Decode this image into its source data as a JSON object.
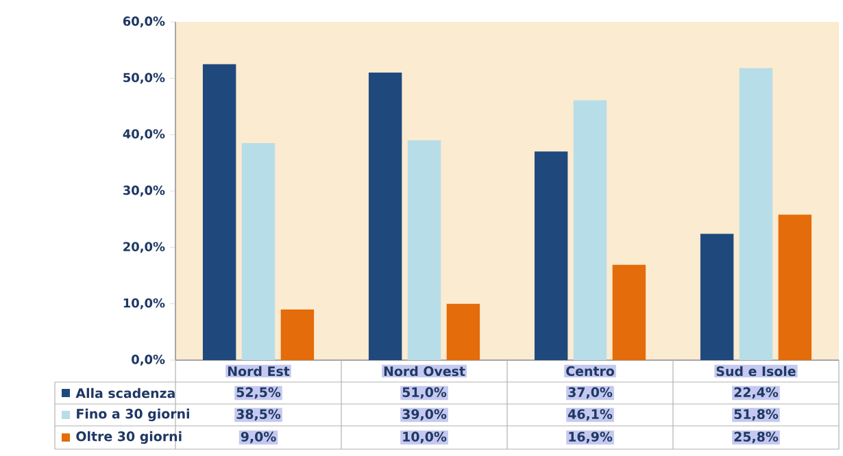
{
  "chart_data": {
    "type": "bar",
    "categories": [
      "Nord Est",
      "Nord Ovest",
      "Centro",
      "Sud e Isole"
    ],
    "series": [
      {
        "name": "Alla scadenza",
        "color": "#1f497d",
        "values": [
          52.5,
          51.0,
          37.0,
          22.4
        ],
        "value_labels": [
          "52,5%",
          "51,0%",
          "37,0%",
          "22,4%"
        ]
      },
      {
        "name": "Fino a 30 giorni",
        "color": "#b7dde8",
        "values": [
          38.5,
          39.0,
          46.1,
          51.8
        ],
        "value_labels": [
          "38,5%",
          "39,0%",
          "46,1%",
          "51,8%"
        ]
      },
      {
        "name": "Oltre 30 giorni",
        "color": "#e46c0a",
        "values": [
          9.0,
          10.0,
          16.9,
          25.8
        ],
        "value_labels": [
          "9,0%",
          "10,0%",
          "16,9%",
          "25,8%"
        ]
      }
    ],
    "ylim": [
      0,
      60
    ],
    "yticks": [
      {
        "value": 0,
        "label": "0,0%"
      },
      {
        "value": 10,
        "label": "10,0%"
      },
      {
        "value": 20,
        "label": "20,0%"
      },
      {
        "value": 30,
        "label": "30,0%"
      },
      {
        "value": 40,
        "label": "40,0%"
      },
      {
        "value": 50,
        "label": "50,0%"
      },
      {
        "value": 60,
        "label": "60,0%"
      }
    ],
    "grid": false,
    "legend": "bottom left"
  }
}
